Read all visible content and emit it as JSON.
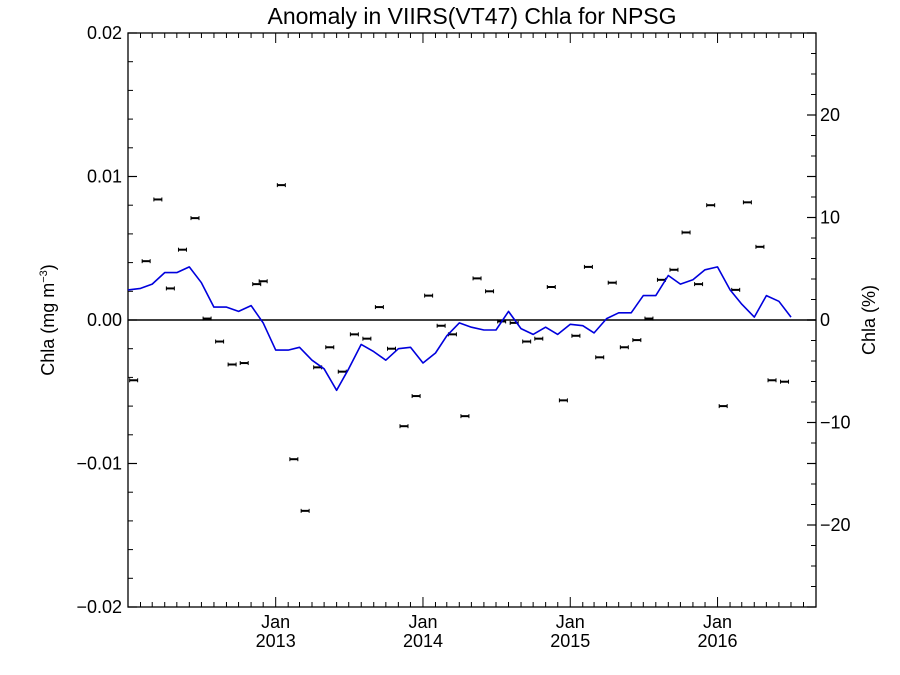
{
  "chart_data": {
    "type": "scatter",
    "title": "Anomaly in VIIRS(VT47) Chla for NPSG",
    "ylabel_left": "Chla (mg m",
    "ylabel_left_sup": "−3",
    "ylabel_left_close": ")",
    "ylabel_right": "Chla (%)",
    "ylim_left": [
      -0.02,
      0.02
    ],
    "ylim_right": [
      -28,
      28
    ],
    "yticks_left": [
      {
        "value": 0.02,
        "label": "0.02"
      },
      {
        "value": 0.01,
        "label": "0.01"
      },
      {
        "value": 0.0,
        "label": "0.00"
      },
      {
        "value": -0.01,
        "label": "−0.01"
      },
      {
        "value": -0.02,
        "label": "−0.02"
      }
    ],
    "yticks_right": [
      {
        "value": 20,
        "label": "20"
      },
      {
        "value": 10,
        "label": "10"
      },
      {
        "value": 0,
        "label": "0"
      },
      {
        "value": -10,
        "label": "−10"
      },
      {
        "value": -20,
        "label": "−20"
      }
    ],
    "xlim": [
      "2012-01-01",
      "2016-09-01"
    ],
    "xticks": [
      {
        "date": "2013-01-01",
        "month": "Jan",
        "year": "2013"
      },
      {
        "date": "2014-01-01",
        "month": "Jan",
        "year": "2014"
      },
      {
        "date": "2015-01-01",
        "month": "Jan",
        "year": "2015"
      },
      {
        "date": "2016-01-01",
        "month": "Jan",
        "year": "2016"
      }
    ],
    "zero_line": true,
    "series": [
      {
        "kind": "points_with_errorbars",
        "axis": "left",
        "color": "#000000",
        "points": [
          {
            "x": "2012-01-15",
            "y": -0.0042
          },
          {
            "x": "2012-02-15",
            "y": 0.0041
          },
          {
            "x": "2012-03-15",
            "y": 0.0084
          },
          {
            "x": "2012-04-15",
            "y": 0.0022
          },
          {
            "x": "2012-05-15",
            "y": 0.0049
          },
          {
            "x": "2012-06-15",
            "y": 0.0071
          },
          {
            "x": "2012-07-15",
            "y": 0.0001
          },
          {
            "x": "2012-08-15",
            "y": -0.0015
          },
          {
            "x": "2012-09-15",
            "y": -0.0031
          },
          {
            "x": "2012-10-15",
            "y": -0.003
          },
          {
            "x": "2012-11-15",
            "y": 0.0025
          },
          {
            "x": "2012-12-01",
            "y": 0.0027
          },
          {
            "x": "2013-01-15",
            "y": 0.0094
          },
          {
            "x": "2013-02-15",
            "y": -0.0097
          },
          {
            "x": "2013-03-15",
            "y": -0.0133
          },
          {
            "x": "2013-04-15",
            "y": -0.0033
          },
          {
            "x": "2013-05-15",
            "y": -0.0019
          },
          {
            "x": "2013-06-15",
            "y": -0.0036
          },
          {
            "x": "2013-07-15",
            "y": -0.001
          },
          {
            "x": "2013-08-15",
            "y": -0.0013
          },
          {
            "x": "2013-09-15",
            "y": 0.0009
          },
          {
            "x": "2013-10-15",
            "y": -0.002
          },
          {
            "x": "2013-11-15",
            "y": -0.0074
          },
          {
            "x": "2013-12-15",
            "y": -0.0053
          },
          {
            "x": "2014-01-15",
            "y": 0.0017
          },
          {
            "x": "2014-02-15",
            "y": -0.0004
          },
          {
            "x": "2014-03-15",
            "y": -0.001
          },
          {
            "x": "2014-04-15",
            "y": -0.0067
          },
          {
            "x": "2014-05-15",
            "y": 0.0029
          },
          {
            "x": "2014-06-15",
            "y": 0.002
          },
          {
            "x": "2014-07-15",
            "y": -0.0001
          },
          {
            "x": "2014-08-15",
            "y": -0.0002
          },
          {
            "x": "2014-09-15",
            "y": -0.0015
          },
          {
            "x": "2014-10-15",
            "y": -0.0013
          },
          {
            "x": "2014-11-15",
            "y": 0.0023
          },
          {
            "x": "2014-12-15",
            "y": -0.0056
          },
          {
            "x": "2015-01-15",
            "y": -0.0011
          },
          {
            "x": "2015-02-15",
            "y": 0.0037
          },
          {
            "x": "2015-03-15",
            "y": -0.0026
          },
          {
            "x": "2015-04-15",
            "y": 0.0026
          },
          {
            "x": "2015-05-15",
            "y": -0.0019
          },
          {
            "x": "2015-06-15",
            "y": -0.0014
          },
          {
            "x": "2015-07-15",
            "y": 0.0001
          },
          {
            "x": "2015-08-15",
            "y": 0.0028
          },
          {
            "x": "2015-09-15",
            "y": 0.0035
          },
          {
            "x": "2015-10-15",
            "y": 0.0061
          },
          {
            "x": "2015-11-15",
            "y": 0.0025
          },
          {
            "x": "2015-12-15",
            "y": 0.008
          },
          {
            "x": "2016-01-15",
            "y": -0.006
          },
          {
            "x": "2016-02-15",
            "y": 0.0021
          },
          {
            "x": "2016-03-15",
            "y": 0.0082
          },
          {
            "x": "2016-04-15",
            "y": 0.0051
          },
          {
            "x": "2016-05-15",
            "y": -0.0042
          },
          {
            "x": "2016-06-15",
            "y": -0.0043
          }
        ]
      },
      {
        "kind": "line",
        "axis": "left",
        "color": "#0000dd",
        "points": [
          {
            "x": "2012-01-01",
            "y": 0.0021
          },
          {
            "x": "2012-02-01",
            "y": 0.0022
          },
          {
            "x": "2012-03-01",
            "y": 0.0025
          },
          {
            "x": "2012-04-01",
            "y": 0.0033
          },
          {
            "x": "2012-05-01",
            "y": 0.0033
          },
          {
            "x": "2012-06-01",
            "y": 0.0037
          },
          {
            "x": "2012-07-01",
            "y": 0.0026
          },
          {
            "x": "2012-08-01",
            "y": 0.0009
          },
          {
            "x": "2012-09-01",
            "y": 0.0009
          },
          {
            "x": "2012-10-01",
            "y": 0.0006
          },
          {
            "x": "2012-11-01",
            "y": 0.001
          },
          {
            "x": "2012-12-01",
            "y": -0.0002
          },
          {
            "x": "2013-01-01",
            "y": -0.0021
          },
          {
            "x": "2013-02-01",
            "y": -0.0021
          },
          {
            "x": "2013-03-01",
            "y": -0.0019
          },
          {
            "x": "2013-04-01",
            "y": -0.0028
          },
          {
            "x": "2013-05-01",
            "y": -0.0034
          },
          {
            "x": "2013-06-01",
            "y": -0.0049
          },
          {
            "x": "2013-07-01",
            "y": -0.0034
          },
          {
            "x": "2013-08-01",
            "y": -0.0017
          },
          {
            "x": "2013-09-01",
            "y": -0.0022
          },
          {
            "x": "2013-10-01",
            "y": -0.0028
          },
          {
            "x": "2013-11-01",
            "y": -0.002
          },
          {
            "x": "2013-12-01",
            "y": -0.0019
          },
          {
            "x": "2014-01-01",
            "y": -0.003
          },
          {
            "x": "2014-02-01",
            "y": -0.0023
          },
          {
            "x": "2014-03-01",
            "y": -0.0011
          },
          {
            "x": "2014-04-01",
            "y": -0.0002
          },
          {
            "x": "2014-05-01",
            "y": -0.0005
          },
          {
            "x": "2014-06-01",
            "y": -0.0007
          },
          {
            "x": "2014-07-01",
            "y": -0.0007
          },
          {
            "x": "2014-08-01",
            "y": 0.0006
          },
          {
            "x": "2014-09-01",
            "y": -0.0006
          },
          {
            "x": "2014-10-01",
            "y": -0.001
          },
          {
            "x": "2014-11-01",
            "y": -0.0005
          },
          {
            "x": "2014-12-01",
            "y": -0.001
          },
          {
            "x": "2015-01-01",
            "y": -0.0003
          },
          {
            "x": "2015-02-01",
            "y": -0.0004
          },
          {
            "x": "2015-03-01",
            "y": -0.0009
          },
          {
            "x": "2015-04-01",
            "y": 0.0001
          },
          {
            "x": "2015-05-01",
            "y": 0.0005
          },
          {
            "x": "2015-06-01",
            "y": 0.0005
          },
          {
            "x": "2015-07-01",
            "y": 0.0017
          },
          {
            "x": "2015-08-01",
            "y": 0.0017
          },
          {
            "x": "2015-09-01",
            "y": 0.0031
          },
          {
            "x": "2015-10-01",
            "y": 0.0025
          },
          {
            "x": "2015-11-01",
            "y": 0.0028
          },
          {
            "x": "2015-12-01",
            "y": 0.0035
          },
          {
            "x": "2016-01-01",
            "y": 0.0037
          },
          {
            "x": "2016-02-01",
            "y": 0.0021
          },
          {
            "x": "2016-03-01",
            "y": 0.0011
          },
          {
            "x": "2016-04-01",
            "y": 0.0002
          },
          {
            "x": "2016-05-01",
            "y": 0.0017
          },
          {
            "x": "2016-06-01",
            "y": 0.0013
          },
          {
            "x": "2016-07-01",
            "y": 0.0002
          }
        ]
      }
    ]
  }
}
